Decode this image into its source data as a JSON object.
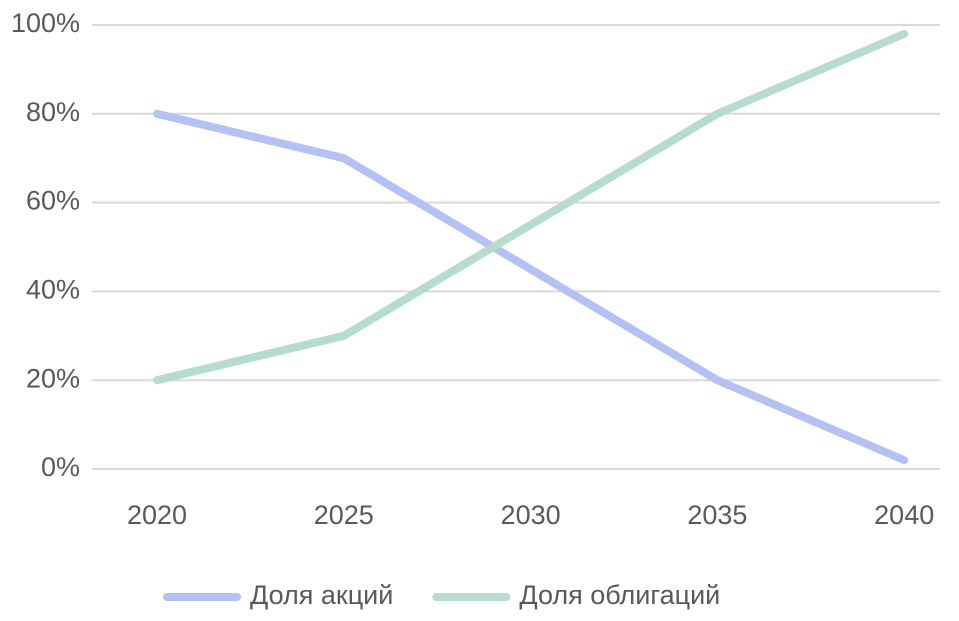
{
  "chart_data": {
    "type": "line",
    "categories": [
      "2020",
      "2025",
      "2030",
      "2035",
      "2040"
    ],
    "series": [
      {
        "name": "Доля акций",
        "color": "#b4c1f4",
        "values": [
          80,
          70,
          45,
          20,
          2
        ]
      },
      {
        "name": "Доля облигаций",
        "color": "#b6dccb",
        "values": [
          20,
          30,
          55,
          80,
          98
        ]
      }
    ],
    "ylim": [
      0,
      100
    ],
    "yticks": [
      {
        "value": 0,
        "label": "0%"
      },
      {
        "value": 20,
        "label": "20%"
      },
      {
        "value": 40,
        "label": "40%"
      },
      {
        "value": 60,
        "label": "60%"
      },
      {
        "value": 80,
        "label": "80%"
      },
      {
        "value": 100,
        "label": "100%"
      }
    ],
    "grid": true,
    "legend": "bottom"
  }
}
